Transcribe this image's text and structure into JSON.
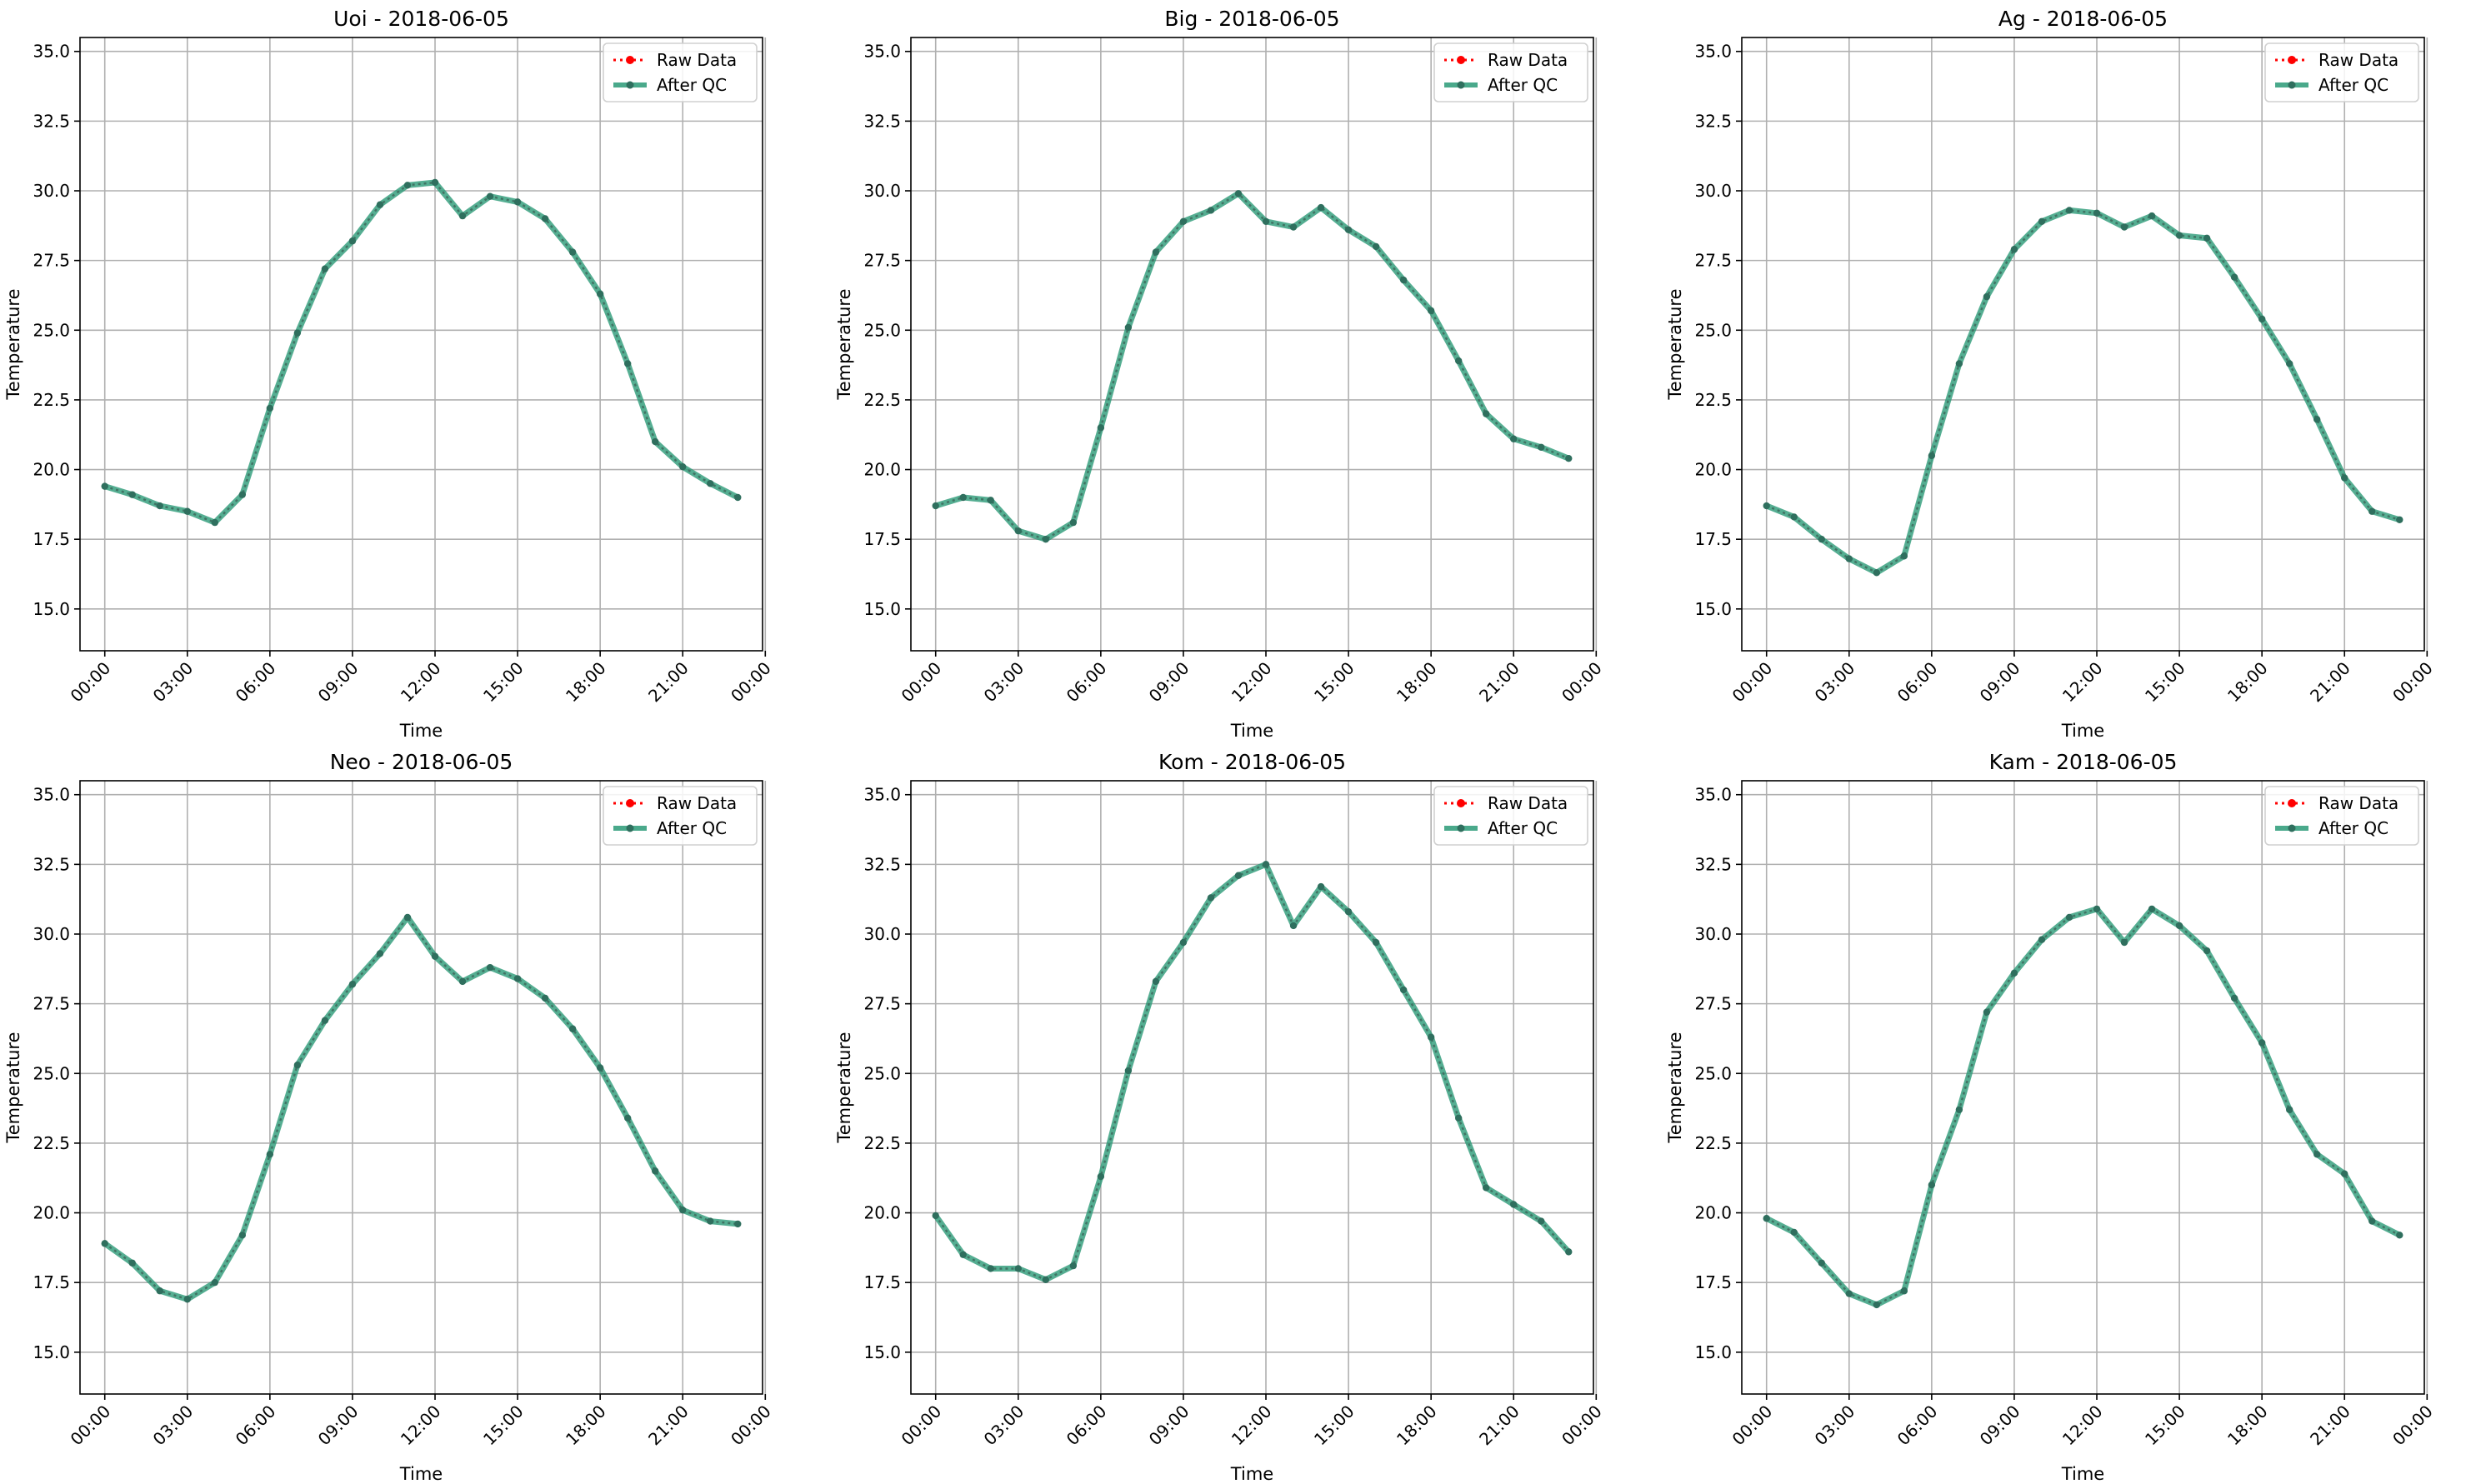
{
  "figure": {
    "background": "#ffffff",
    "colors": {
      "raw": "#ff0000",
      "qc": "#2a9a77",
      "qc_marker": "#2f6f5e",
      "grid": "#b0b0b0"
    }
  },
  "chart_data": [
    {
      "type": "line",
      "title": "Uoi - 2018-06-05",
      "xlabel": "Time",
      "ylabel": "Temperature",
      "ylim": [
        13.5,
        35.5
      ],
      "xlim": [
        -0.9,
        23.9
      ],
      "yticks": [
        "15.0",
        "17.5",
        "20.0",
        "22.5",
        "25.0",
        "27.5",
        "30.0",
        "32.5",
        "35.0"
      ],
      "xticks": [
        "00:00",
        "03:00",
        "06:00",
        "09:00",
        "12:00",
        "15:00",
        "18:00",
        "21:00",
        "00:00"
      ],
      "grid": true,
      "legend": "top-right",
      "x": [
        "00:00",
        "01:00",
        "02:00",
        "03:00",
        "04:00",
        "05:00",
        "06:00",
        "07:00",
        "08:00",
        "09:00",
        "10:00",
        "11:00",
        "12:00",
        "13:00",
        "14:00",
        "15:00",
        "16:00",
        "17:00",
        "18:00",
        "19:00",
        "20:00",
        "21:00",
        "22:00",
        "23:00"
      ],
      "series": [
        {
          "name": "Raw Data",
          "values": [
            19.4,
            19.1,
            18.7,
            18.5,
            18.1,
            19.1,
            22.2,
            24.9,
            27.2,
            28.2,
            29.5,
            30.2,
            30.3,
            29.1,
            29.8,
            29.6,
            29.0,
            27.8,
            26.3,
            23.8,
            21.0,
            20.1,
            19.5,
            19.0
          ]
        },
        {
          "name": "After QC",
          "values": [
            19.4,
            19.1,
            18.7,
            18.5,
            18.1,
            19.1,
            22.2,
            24.9,
            27.2,
            28.2,
            29.5,
            30.2,
            30.3,
            29.1,
            29.8,
            29.6,
            29.0,
            27.8,
            26.3,
            23.8,
            21.0,
            20.1,
            19.5,
            19.0
          ]
        }
      ]
    },
    {
      "type": "line",
      "title": "Big - 2018-06-05",
      "xlabel": "Time",
      "ylabel": "Temperature",
      "ylim": [
        13.5,
        35.5
      ],
      "xlim": [
        -0.9,
        23.9
      ],
      "yticks": [
        "15.0",
        "17.5",
        "20.0",
        "22.5",
        "25.0",
        "27.5",
        "30.0",
        "32.5",
        "35.0"
      ],
      "xticks": [
        "00:00",
        "03:00",
        "06:00",
        "09:00",
        "12:00",
        "15:00",
        "18:00",
        "21:00",
        "00:00"
      ],
      "grid": true,
      "legend": "top-right",
      "x": [
        "00:00",
        "01:00",
        "02:00",
        "03:00",
        "04:00",
        "05:00",
        "06:00",
        "07:00",
        "08:00",
        "09:00",
        "10:00",
        "11:00",
        "12:00",
        "13:00",
        "14:00",
        "15:00",
        "16:00",
        "17:00",
        "18:00",
        "19:00",
        "20:00",
        "21:00",
        "22:00",
        "23:00"
      ],
      "series": [
        {
          "name": "Raw Data",
          "values": [
            18.7,
            19.0,
            18.9,
            17.8,
            17.5,
            18.1,
            21.5,
            25.1,
            27.8,
            28.9,
            29.3,
            29.9,
            28.9,
            28.7,
            29.4,
            28.6,
            28.0,
            26.8,
            25.7,
            23.9,
            22.0,
            21.1,
            20.8,
            20.4
          ]
        },
        {
          "name": "After QC",
          "values": [
            18.7,
            19.0,
            18.9,
            17.8,
            17.5,
            18.1,
            21.5,
            25.1,
            27.8,
            28.9,
            29.3,
            29.9,
            28.9,
            28.7,
            29.4,
            28.6,
            28.0,
            26.8,
            25.7,
            23.9,
            22.0,
            21.1,
            20.8,
            20.4
          ]
        }
      ]
    },
    {
      "type": "line",
      "title": "Ag - 2018-06-05",
      "xlabel": "Time",
      "ylabel": "Temperature",
      "ylim": [
        13.5,
        35.5
      ],
      "xlim": [
        -0.9,
        23.9
      ],
      "yticks": [
        "15.0",
        "17.5",
        "20.0",
        "22.5",
        "25.0",
        "27.5",
        "30.0",
        "32.5",
        "35.0"
      ],
      "xticks": [
        "00:00",
        "03:00",
        "06:00",
        "09:00",
        "12:00",
        "15:00",
        "18:00",
        "21:00",
        "00:00"
      ],
      "grid": true,
      "legend": "top-right",
      "x": [
        "00:00",
        "01:00",
        "02:00",
        "03:00",
        "04:00",
        "05:00",
        "06:00",
        "07:00",
        "08:00",
        "09:00",
        "10:00",
        "11:00",
        "12:00",
        "13:00",
        "14:00",
        "15:00",
        "16:00",
        "17:00",
        "18:00",
        "19:00",
        "20:00",
        "21:00",
        "22:00",
        "23:00"
      ],
      "series": [
        {
          "name": "Raw Data",
          "values": [
            18.7,
            18.3,
            17.5,
            16.8,
            16.3,
            16.9,
            20.5,
            23.8,
            26.2,
            27.9,
            28.9,
            29.3,
            29.2,
            28.7,
            29.1,
            28.4,
            28.3,
            26.9,
            25.4,
            23.8,
            21.8,
            19.7,
            18.5,
            18.2
          ]
        },
        {
          "name": "After QC",
          "values": [
            18.7,
            18.3,
            17.5,
            16.8,
            16.3,
            16.9,
            20.5,
            23.8,
            26.2,
            27.9,
            28.9,
            29.3,
            29.2,
            28.7,
            29.1,
            28.4,
            28.3,
            26.9,
            25.4,
            23.8,
            21.8,
            19.7,
            18.5,
            18.2
          ]
        }
      ]
    },
    {
      "type": "line",
      "title": "Neo - 2018-06-05",
      "xlabel": "Time",
      "ylabel": "Temperature",
      "ylim": [
        13.5,
        35.5
      ],
      "xlim": [
        -0.9,
        23.9
      ],
      "yticks": [
        "15.0",
        "17.5",
        "20.0",
        "22.5",
        "25.0",
        "27.5",
        "30.0",
        "32.5",
        "35.0"
      ],
      "xticks": [
        "00:00",
        "03:00",
        "06:00",
        "09:00",
        "12:00",
        "15:00",
        "18:00",
        "21:00",
        "00:00"
      ],
      "grid": true,
      "legend": "top-right",
      "x": [
        "00:00",
        "01:00",
        "02:00",
        "03:00",
        "04:00",
        "05:00",
        "06:00",
        "07:00",
        "08:00",
        "09:00",
        "10:00",
        "11:00",
        "12:00",
        "13:00",
        "14:00",
        "15:00",
        "16:00",
        "17:00",
        "18:00",
        "19:00",
        "20:00",
        "21:00",
        "22:00",
        "23:00"
      ],
      "series": [
        {
          "name": "Raw Data",
          "values": [
            18.9,
            18.2,
            17.2,
            16.9,
            17.5,
            19.2,
            22.1,
            25.3,
            26.9,
            28.2,
            29.3,
            30.6,
            29.2,
            28.3,
            28.8,
            28.4,
            27.7,
            26.6,
            25.2,
            23.4,
            21.5,
            20.1,
            19.7,
            19.6
          ]
        },
        {
          "name": "After QC",
          "values": [
            18.9,
            18.2,
            17.2,
            16.9,
            17.5,
            19.2,
            22.1,
            25.3,
            26.9,
            28.2,
            29.3,
            30.6,
            29.2,
            28.3,
            28.8,
            28.4,
            27.7,
            26.6,
            25.2,
            23.4,
            21.5,
            20.1,
            19.7,
            19.6
          ]
        }
      ]
    },
    {
      "type": "line",
      "title": "Kom - 2018-06-05",
      "xlabel": "Time",
      "ylabel": "Temperature",
      "ylim": [
        13.5,
        35.5
      ],
      "xlim": [
        -0.9,
        23.9
      ],
      "yticks": [
        "15.0",
        "17.5",
        "20.0",
        "22.5",
        "25.0",
        "27.5",
        "30.0",
        "32.5",
        "35.0"
      ],
      "xticks": [
        "00:00",
        "03:00",
        "06:00",
        "09:00",
        "12:00",
        "15:00",
        "18:00",
        "21:00",
        "00:00"
      ],
      "grid": true,
      "legend": "top-right",
      "x": [
        "00:00",
        "01:00",
        "02:00",
        "03:00",
        "04:00",
        "05:00",
        "06:00",
        "07:00",
        "08:00",
        "09:00",
        "10:00",
        "11:00",
        "12:00",
        "13:00",
        "14:00",
        "15:00",
        "16:00",
        "17:00",
        "18:00",
        "19:00",
        "20:00",
        "21:00",
        "22:00",
        "23:00"
      ],
      "series": [
        {
          "name": "Raw Data",
          "values": [
            19.9,
            18.5,
            18.0,
            18.0,
            17.6,
            18.1,
            21.3,
            25.1,
            28.3,
            29.7,
            31.3,
            32.1,
            32.5,
            30.3,
            31.7,
            30.8,
            29.7,
            28.0,
            26.3,
            23.4,
            20.9,
            20.3,
            19.7,
            18.6
          ]
        },
        {
          "name": "After QC",
          "values": [
            19.9,
            18.5,
            18.0,
            18.0,
            17.6,
            18.1,
            21.3,
            25.1,
            28.3,
            29.7,
            31.3,
            32.1,
            32.5,
            30.3,
            31.7,
            30.8,
            29.7,
            28.0,
            26.3,
            23.4,
            20.9,
            20.3,
            19.7,
            18.6
          ]
        }
      ]
    },
    {
      "type": "line",
      "title": "Kam - 2018-06-05",
      "xlabel": "Time",
      "ylabel": "Temperature",
      "ylim": [
        13.5,
        35.5
      ],
      "xlim": [
        -0.9,
        23.9
      ],
      "yticks": [
        "15.0",
        "17.5",
        "20.0",
        "22.5",
        "25.0",
        "27.5",
        "30.0",
        "32.5",
        "35.0"
      ],
      "xticks": [
        "00:00",
        "03:00",
        "06:00",
        "09:00",
        "12:00",
        "15:00",
        "18:00",
        "21:00",
        "00:00"
      ],
      "grid": true,
      "legend": "top-right",
      "x": [
        "00:00",
        "01:00",
        "02:00",
        "03:00",
        "04:00",
        "05:00",
        "06:00",
        "07:00",
        "08:00",
        "09:00",
        "10:00",
        "11:00",
        "12:00",
        "13:00",
        "14:00",
        "15:00",
        "16:00",
        "17:00",
        "18:00",
        "19:00",
        "20:00",
        "21:00",
        "22:00",
        "23:00"
      ],
      "series": [
        {
          "name": "Raw Data",
          "values": [
            19.8,
            19.3,
            18.2,
            17.1,
            16.7,
            17.2,
            21.0,
            23.7,
            27.2,
            28.6,
            29.8,
            30.6,
            30.9,
            29.7,
            30.9,
            30.3,
            29.4,
            27.7,
            26.1,
            23.7,
            22.1,
            21.4,
            19.7,
            19.2
          ]
        },
        {
          "name": "After QC",
          "values": [
            19.8,
            19.3,
            18.2,
            17.1,
            16.7,
            17.2,
            21.0,
            23.7,
            27.2,
            28.6,
            29.8,
            30.6,
            30.9,
            29.7,
            30.9,
            30.3,
            29.4,
            27.7,
            26.1,
            23.7,
            22.1,
            21.4,
            19.7,
            19.2
          ]
        }
      ]
    }
  ]
}
